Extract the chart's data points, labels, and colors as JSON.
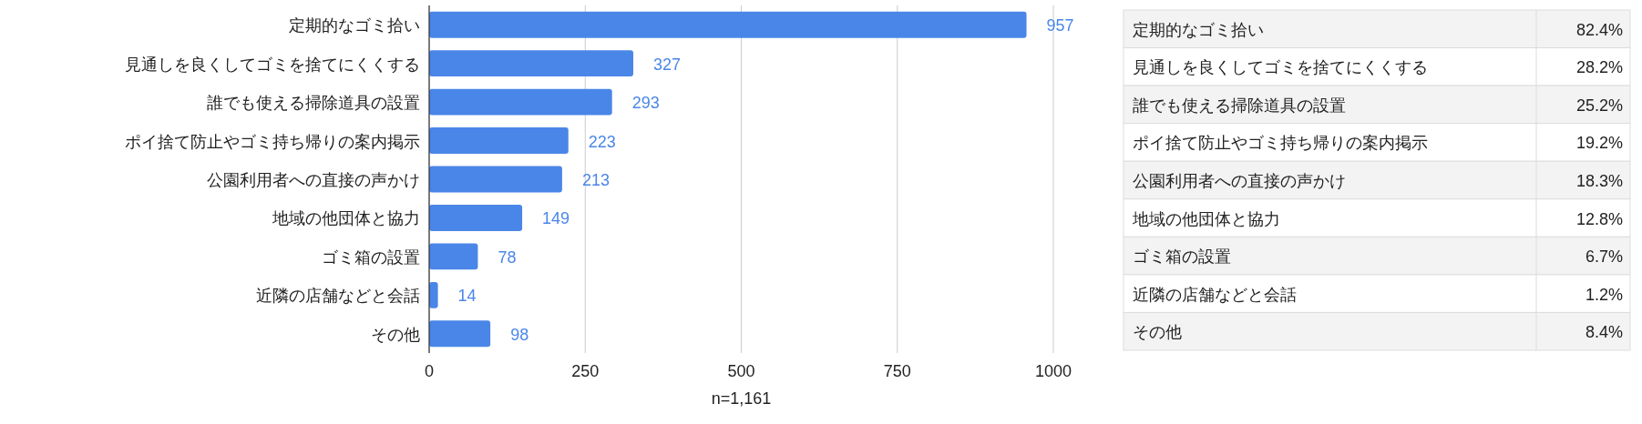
{
  "chart_data": [
    {
      "type": "bar",
      "orientation": "horizontal",
      "categories": [
        "定期的なゴミ拾い",
        "見通しを良くしてゴミを捨てにくくする",
        "誰でも使える掃除道具の設置",
        "ポイ捨て防止やゴミ持ち帰りの案内掲示",
        "公園利用者への直接の声かけ",
        "地域の他団体と協力",
        "ゴミ箱の設置",
        "近隣の店舗などと会話",
        "その他"
      ],
      "values": [
        957,
        327,
        293,
        223,
        213,
        149,
        78,
        14,
        98
      ],
      "color": "#4a86e8",
      "data_labels": true,
      "xlim": [
        0,
        1000
      ],
      "xticks": [
        0,
        250,
        500,
        750,
        1000
      ],
      "grid": "x",
      "xlabel": "n=1,161"
    },
    {
      "type": "other",
      "categories": [
        "定期的なゴミ拾い",
        "見通しを良くしてゴミを捨てにくくする",
        "誰でも使える掃除道具の設置",
        "ポイ捨て防止やゴミ持ち帰りの案内掲示",
        "公園利用者への直接の声かけ",
        "地域の他団体と協力",
        "ゴミ箱の設置",
        "近隣の店舗などと会話",
        "その他"
      ],
      "value_labels": [
        "82.4%",
        "28.2%",
        "25.2%",
        "19.2%",
        "18.3%",
        "12.8%",
        "6.7%",
        "1.2%",
        "8.4%"
      ]
    }
  ]
}
